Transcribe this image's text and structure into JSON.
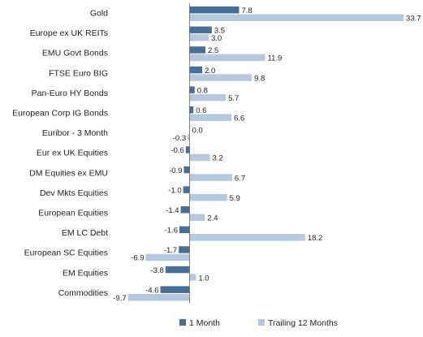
{
  "chart_data": {
    "type": "bar",
    "orientation": "horizontal",
    "categories": [
      "Gold",
      "Europe ex UK REITs",
      "EMU Govt Bonds",
      "FTSE Euro BIG",
      "Pan-Euro HY Bonds",
      "European Corp IG Bonds",
      "Euribor - 3 Month",
      "Eur ex UK Equities",
      "DM Equities ex EMU",
      "Dev Mkts Equities",
      "European Equities",
      "EM LC Debt",
      "European SC Equities",
      "EM Equities",
      "Commodities"
    ],
    "series": [
      {
        "name": "1 Month",
        "color": "#4a6f96",
        "values": [
          7.8,
          3.5,
          2.5,
          2.0,
          0.8,
          0.6,
          0.0,
          -0.6,
          -0.9,
          -1.0,
          -1.4,
          -1.6,
          -1.7,
          -3.8,
          -4.6
        ],
        "labels": [
          "7.8",
          "3.5",
          "2.5",
          "2.0",
          "0.8",
          "0.6",
          "0.0",
          "-0.6",
          "-0.9",
          "-1.0",
          "-1.4",
          "-1.6",
          "-1.7",
          "-3.8",
          "-4.6"
        ]
      },
      {
        "name": "Trailing 12 Months",
        "color": "#b5c8dd",
        "values": [
          33.7,
          3.0,
          11.9,
          9.8,
          5.7,
          6.6,
          -0.3,
          3.2,
          6.7,
          5.9,
          2.4,
          18.2,
          -6.9,
          1.0,
          -9.7
        ],
        "labels": [
          "33.7",
          "3.0",
          "11.9",
          "9.8",
          "5.7",
          "6.6",
          "-0.3",
          "3.2",
          "6.7",
          "5.9",
          "2.4",
          "18.2",
          "-6.9",
          "1.0",
          "-9.7"
        ]
      }
    ],
    "xlim": [
      -10,
      34
    ],
    "grid": false,
    "legend_position": "bottom"
  }
}
